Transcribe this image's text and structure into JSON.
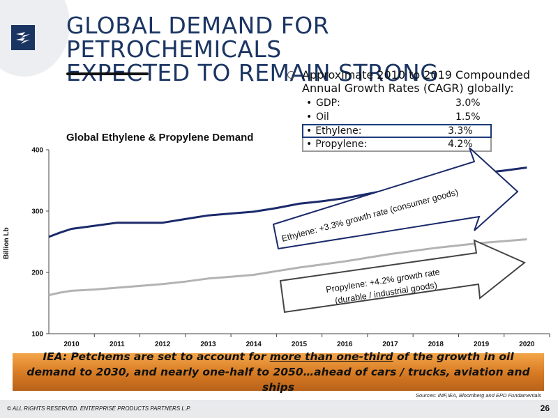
{
  "slide": {
    "title_line1": "GLOBAL DEMAND FOR PETROCHEMICALS",
    "title_line2": "EXPECTED TO REMAIN STRONG",
    "brand_color": "#1b3563",
    "accent_color": "#d67a22"
  },
  "cagr": {
    "heading": "Approximate 2010 to 2019 Compounded Annual Growth Rates (CAGR) globally:",
    "rows": [
      {
        "bullet": "•",
        "name": "GDP:",
        "value": "3.0%"
      },
      {
        "bullet": "•",
        "name": "Oil",
        "value": "1.5%"
      },
      {
        "bullet": "•",
        "name": "Ethylene:",
        "value": "3.3%"
      },
      {
        "bullet": "•",
        "name": "Propylene:",
        "value": "4.2%"
      }
    ]
  },
  "banner": {
    "prefix": "IEA:  Petchems are set to account for ",
    "emphasis": "more than one-third",
    "suffix": " of the growth in oil demand to 2030, and nearly one-half to 2050…ahead of cars / trucks, aviation and ships"
  },
  "footer": {
    "sources": "Sources:  IMF,IEA, Bloomberg and EPD Fundamentals",
    "copyright": "© ALL RIGHTS RESERVED. ENTERPRISE PRODUCTS PARTNERS L.P.",
    "page_number": "26"
  },
  "chart_data": {
    "type": "line",
    "title": "Global Ethylene & Propylene Demand",
    "ylabel": "Billion Lb",
    "xlabel": "",
    "ylim": [
      100,
      400
    ],
    "yticks": [
      100,
      200,
      300,
      400
    ],
    "grid": "none",
    "categories": [
      "2010",
      "2011",
      "2012",
      "2013",
      "2014",
      "2015",
      "2016",
      "2017",
      "2018",
      "2019",
      "2020"
    ],
    "x": [
      2009.5,
      2009.75,
      2010,
      2010.5,
      2011,
      2011.5,
      2012,
      2012.5,
      2013,
      2013.5,
      2014,
      2014.5,
      2015,
      2015.5,
      2016,
      2016.5,
      2017,
      2017.5,
      2018,
      2018.5,
      2019,
      2019.5,
      2020
    ],
    "series": [
      {
        "color": "#1b2a6b",
        "values": [
          258,
          265,
          271,
          276,
          281,
          281,
          281,
          287,
          293,
          296,
          299,
          305,
          312,
          316,
          321,
          328,
          335,
          343,
          351,
          356,
          362,
          366,
          371
        ]
      },
      {
        "color": "#b3b3b3",
        "values": [
          163,
          167,
          170,
          172,
          175,
          178,
          181,
          185,
          190,
          193,
          196,
          202,
          208,
          213,
          218,
          224,
          230,
          235,
          240,
          244,
          248,
          251,
          254
        ]
      }
    ],
    "annotations": [
      {
        "text_line1": "Ethylene:  +3.3% growth rate (consumer goods)",
        "text_line2": "",
        "border": "#1b2a6b"
      },
      {
        "text_line1": "Propylene:  +4.2% growth rate",
        "text_line2": "(durable / industrial goods)",
        "border": "#444444"
      }
    ]
  }
}
